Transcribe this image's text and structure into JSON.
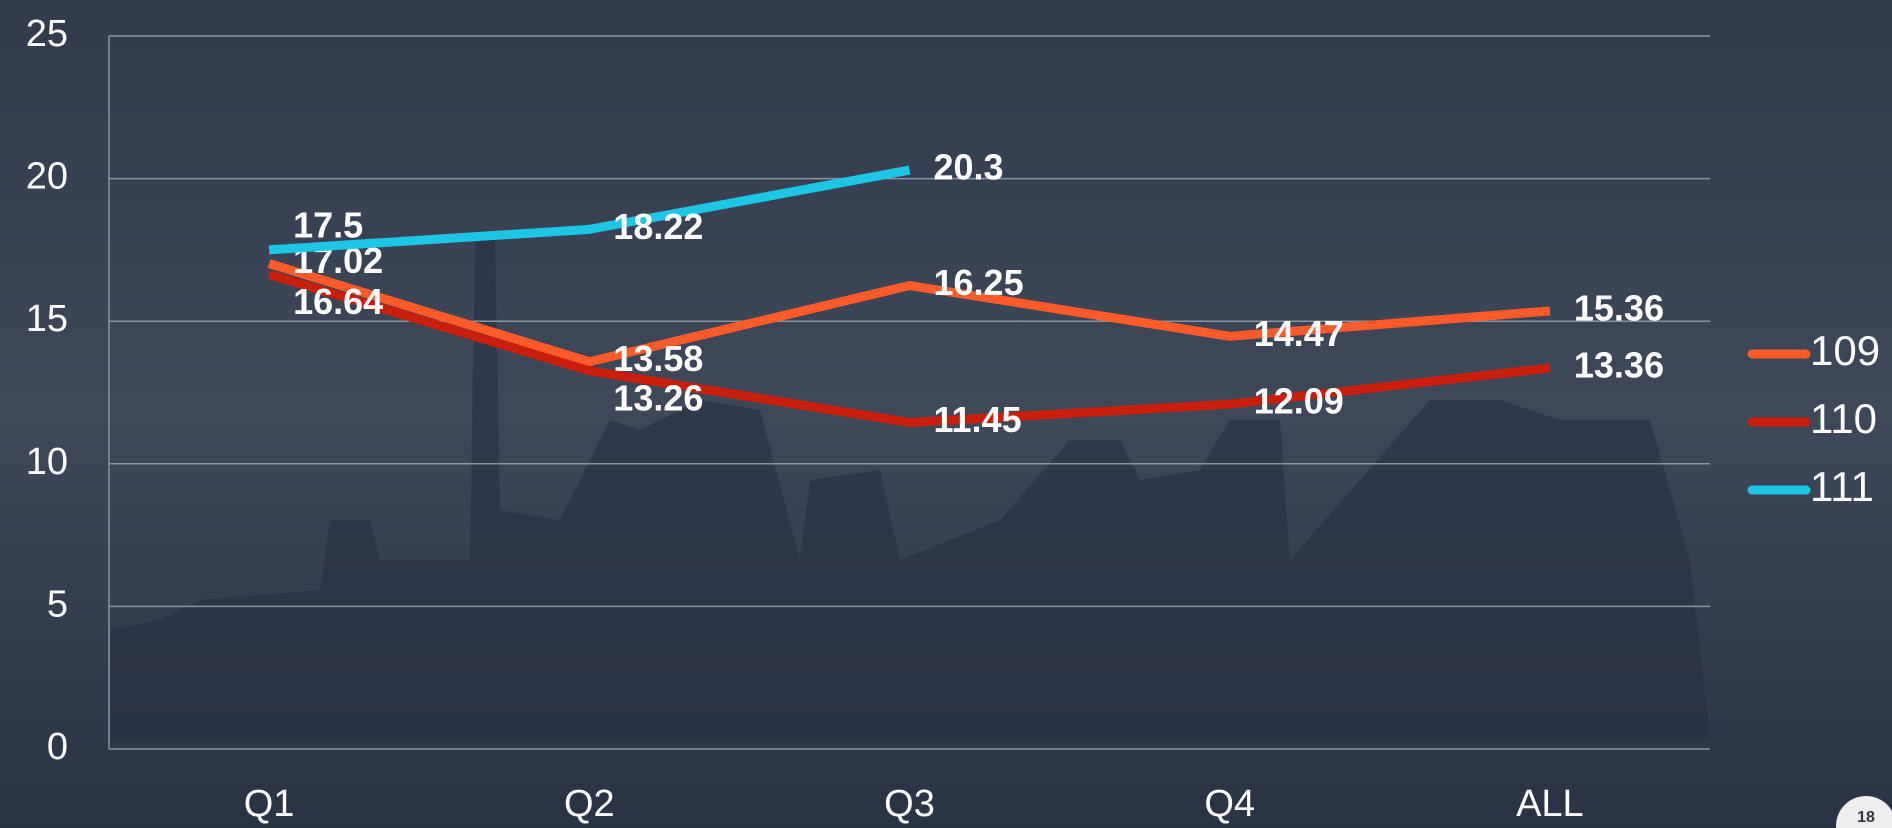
{
  "chart_data": {
    "type": "line",
    "categories": [
      "Q1",
      "Q2",
      "Q3",
      "Q4",
      "ALL"
    ],
    "series": [
      {
        "name": "109",
        "color": "#ff5a2a",
        "values": [
          17.02,
          13.58,
          16.25,
          14.47,
          15.36
        ]
      },
      {
        "name": "110",
        "color": "#c91e0b",
        "values": [
          16.64,
          13.26,
          11.45,
          12.09,
          13.36
        ]
      },
      {
        "name": "111",
        "color": "#1ec6e6",
        "values": [
          17.5,
          18.22,
          20.3,
          null,
          null
        ]
      }
    ],
    "ylim": [
      0,
      25
    ],
    "yticks": [
      0,
      5,
      10,
      15,
      20,
      25
    ],
    "grid": true,
    "legend": "right",
    "page_number": "18"
  }
}
